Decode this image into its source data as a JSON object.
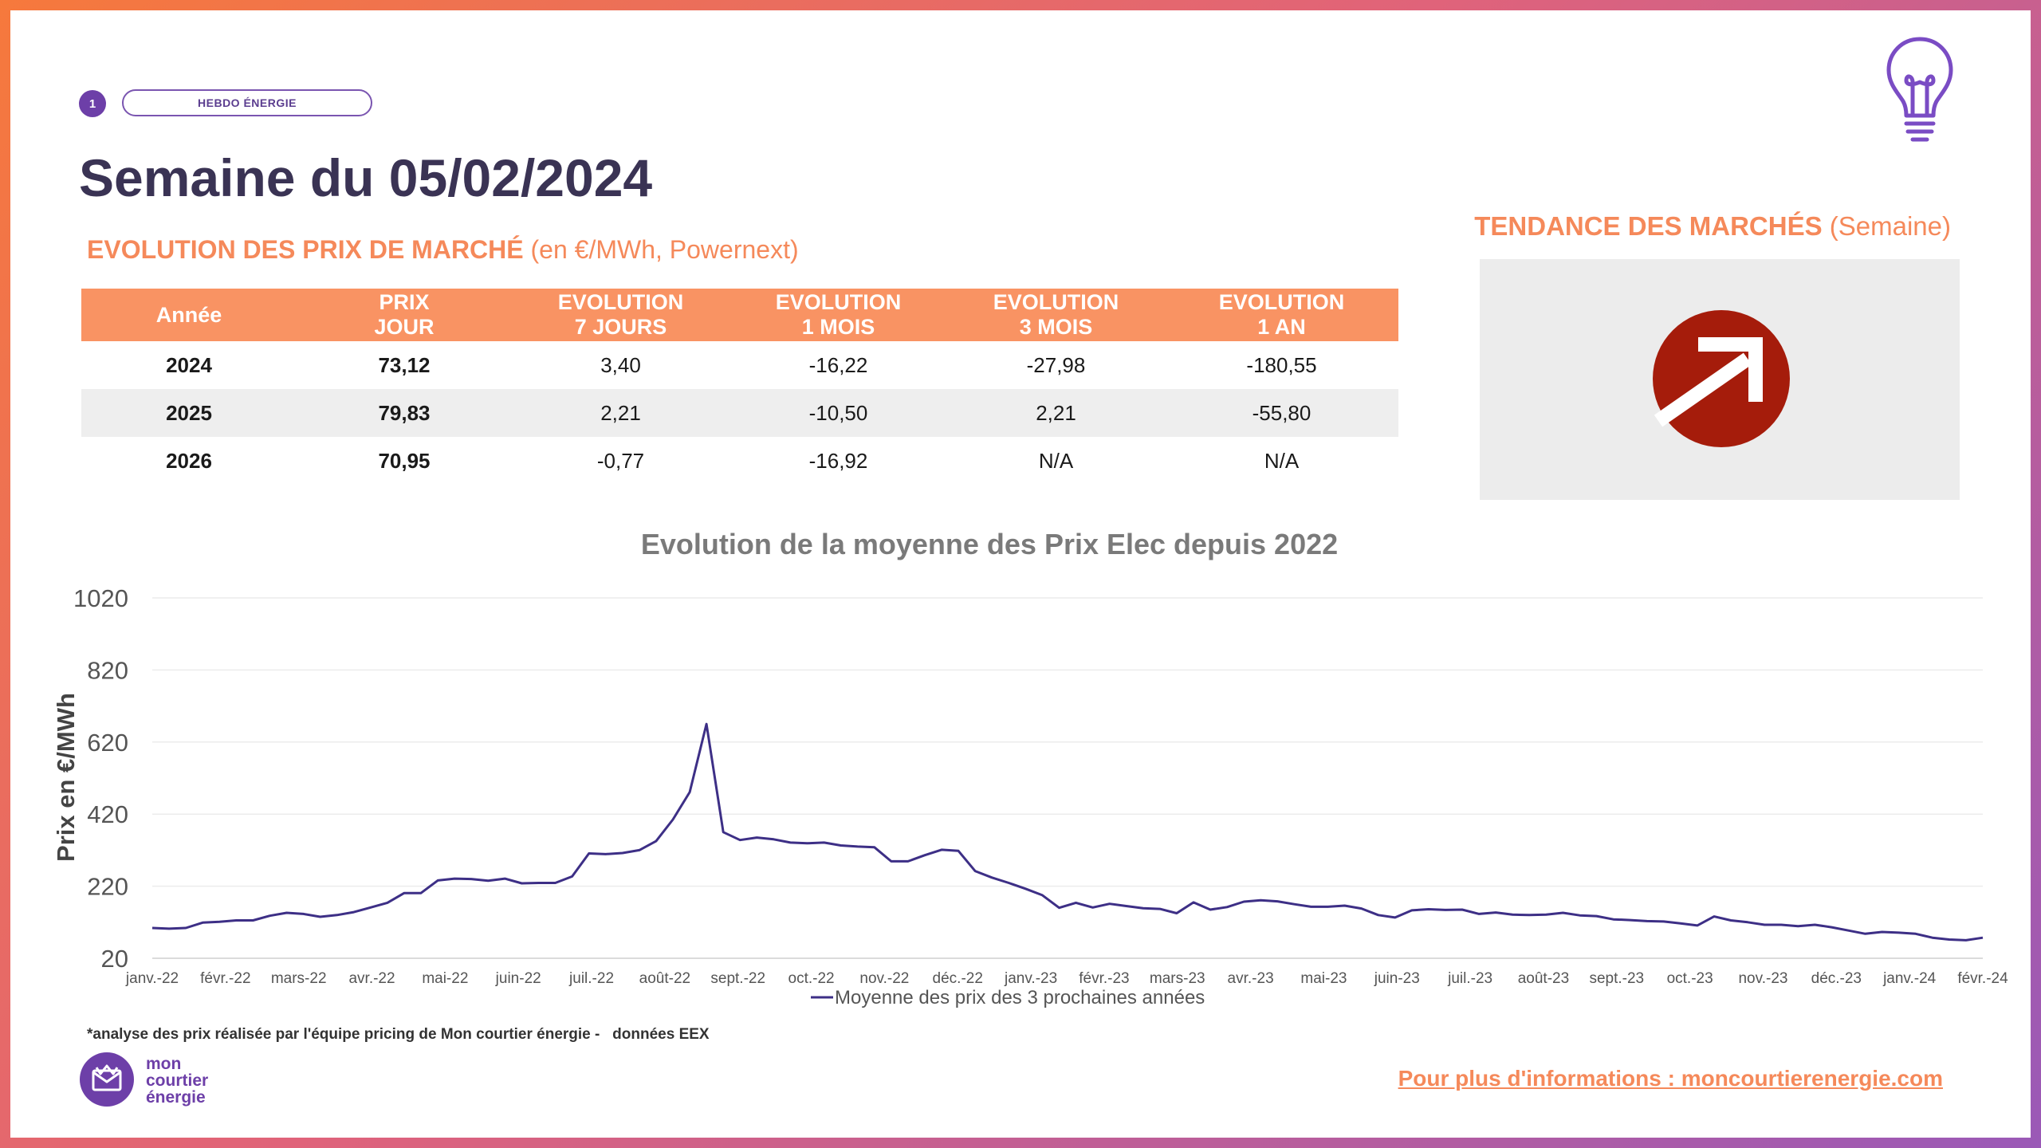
{
  "header": {
    "badge_number": "1",
    "badge_label": "HEBDO ÉNERGIE",
    "title": "Semaine du 05/02/2024",
    "subtitle_bold": "EVOLUTION DES PRIX DE MARCHÉ",
    "subtitle_rest": " (en €/MWh, Powernext)"
  },
  "trend": {
    "title_bold": "TENDANCE DES MARCHÉS",
    "title_rest": " (Semaine)",
    "direction": "up-right-arrow-icon",
    "icon_color": "#a51c0b"
  },
  "colors": {
    "accent": "#f99363",
    "brand_purple": "#6d3fa8",
    "line": "#3d2f86"
  },
  "table": {
    "headers": [
      [
        "Année"
      ],
      [
        "PRIX",
        "JOUR"
      ],
      [
        "EVOLUTION",
        "7 JOURS"
      ],
      [
        "EVOLUTION",
        "1 MOIS"
      ],
      [
        "EVOLUTION",
        "3 MOIS"
      ],
      [
        "EVOLUTION",
        "1 AN"
      ]
    ],
    "rows": [
      {
        "year": "2024",
        "prix": "73,12",
        "e7": "3,40",
        "e1m": "-16,22",
        "e3m": "-27,98",
        "e1a": "-180,55"
      },
      {
        "year": "2025",
        "prix": "79,83",
        "e7": "2,21",
        "e1m": "-10,50",
        "e3m": "2,21",
        "e1a": "-55,80"
      },
      {
        "year": "2026",
        "prix": "70,95",
        "e7": "-0,77",
        "e1m": "-16,92",
        "e3m": "N/A",
        "e1a": "N/A"
      }
    ]
  },
  "chart_data": {
    "type": "line",
    "title": "Evolution de la moyenne des Prix Elec depuis 2022",
    "ylabel": "Prix en €/MWh",
    "xlabel": "",
    "ylim": [
      20,
      1020
    ],
    "yticks": [
      20,
      220,
      420,
      620,
      820,
      1020
    ],
    "grid": true,
    "legend_position": "bottom",
    "x_tick_labels": [
      "janv.-22",
      "févr.-22",
      "mars-22",
      "avr.-22",
      "mai-22",
      "juin-22",
      "juil.-22",
      "août-22",
      "sept.-22",
      "oct.-22",
      "nov.-22",
      "déc.-22",
      "janv.-23",
      "févr.-23",
      "mars-23",
      "avr.-23",
      "mai-23",
      "juin-23",
      "juil.-23",
      "août-23",
      "sept.-23",
      "oct.-23",
      "nov.-23",
      "déc.-23",
      "janv.-24",
      "févr.-24"
    ],
    "series": [
      {
        "name": "Moyenne des prix des 3 prochaines années",
        "color": "#3d2f86",
        "values": [
          104,
          102,
          104,
          119,
          121,
          125,
          125,
          138,
          146,
          143,
          135,
          140,
          148,
          161,
          174,
          201,
          201,
          236,
          241,
          240,
          235,
          241,
          228,
          229,
          229,
          247,
          311,
          309,
          312,
          320,
          345,
          405,
          481,
          670,
          370,
          348,
          355,
          350,
          341,
          339,
          341,
          333,
          330,
          328,
          289,
          289,
          306,
          321,
          318,
          262,
          244,
          229,
          213,
          195,
          160,
          174,
          161,
          171,
          165,
          159,
          157,
          145,
          175,
          155,
          162,
          177,
          181,
          178,
          170,
          163,
          163,
          166,
          158,
          140,
          133,
          153,
          156,
          154,
          155,
          143,
          147,
          141,
          140,
          141,
          146,
          139,
          137,
          128,
          126,
          123,
          122,
          117,
          111,
          136,
          125,
          120,
          113,
          113,
          109,
          113,
          106,
          97,
          88,
          93,
          91,
          88,
          77,
          72,
          70,
          77
        ]
      }
    ]
  },
  "footer": {
    "footnote": "*analyse des prix réalisée par l'équipe pricing de Mon courtier énergie -   données EEX",
    "logo_line1": "mon",
    "logo_line2": "courtier",
    "logo_line3": "énergie",
    "info_link": "Pour plus d'informations : moncourtierenergie.com"
  }
}
